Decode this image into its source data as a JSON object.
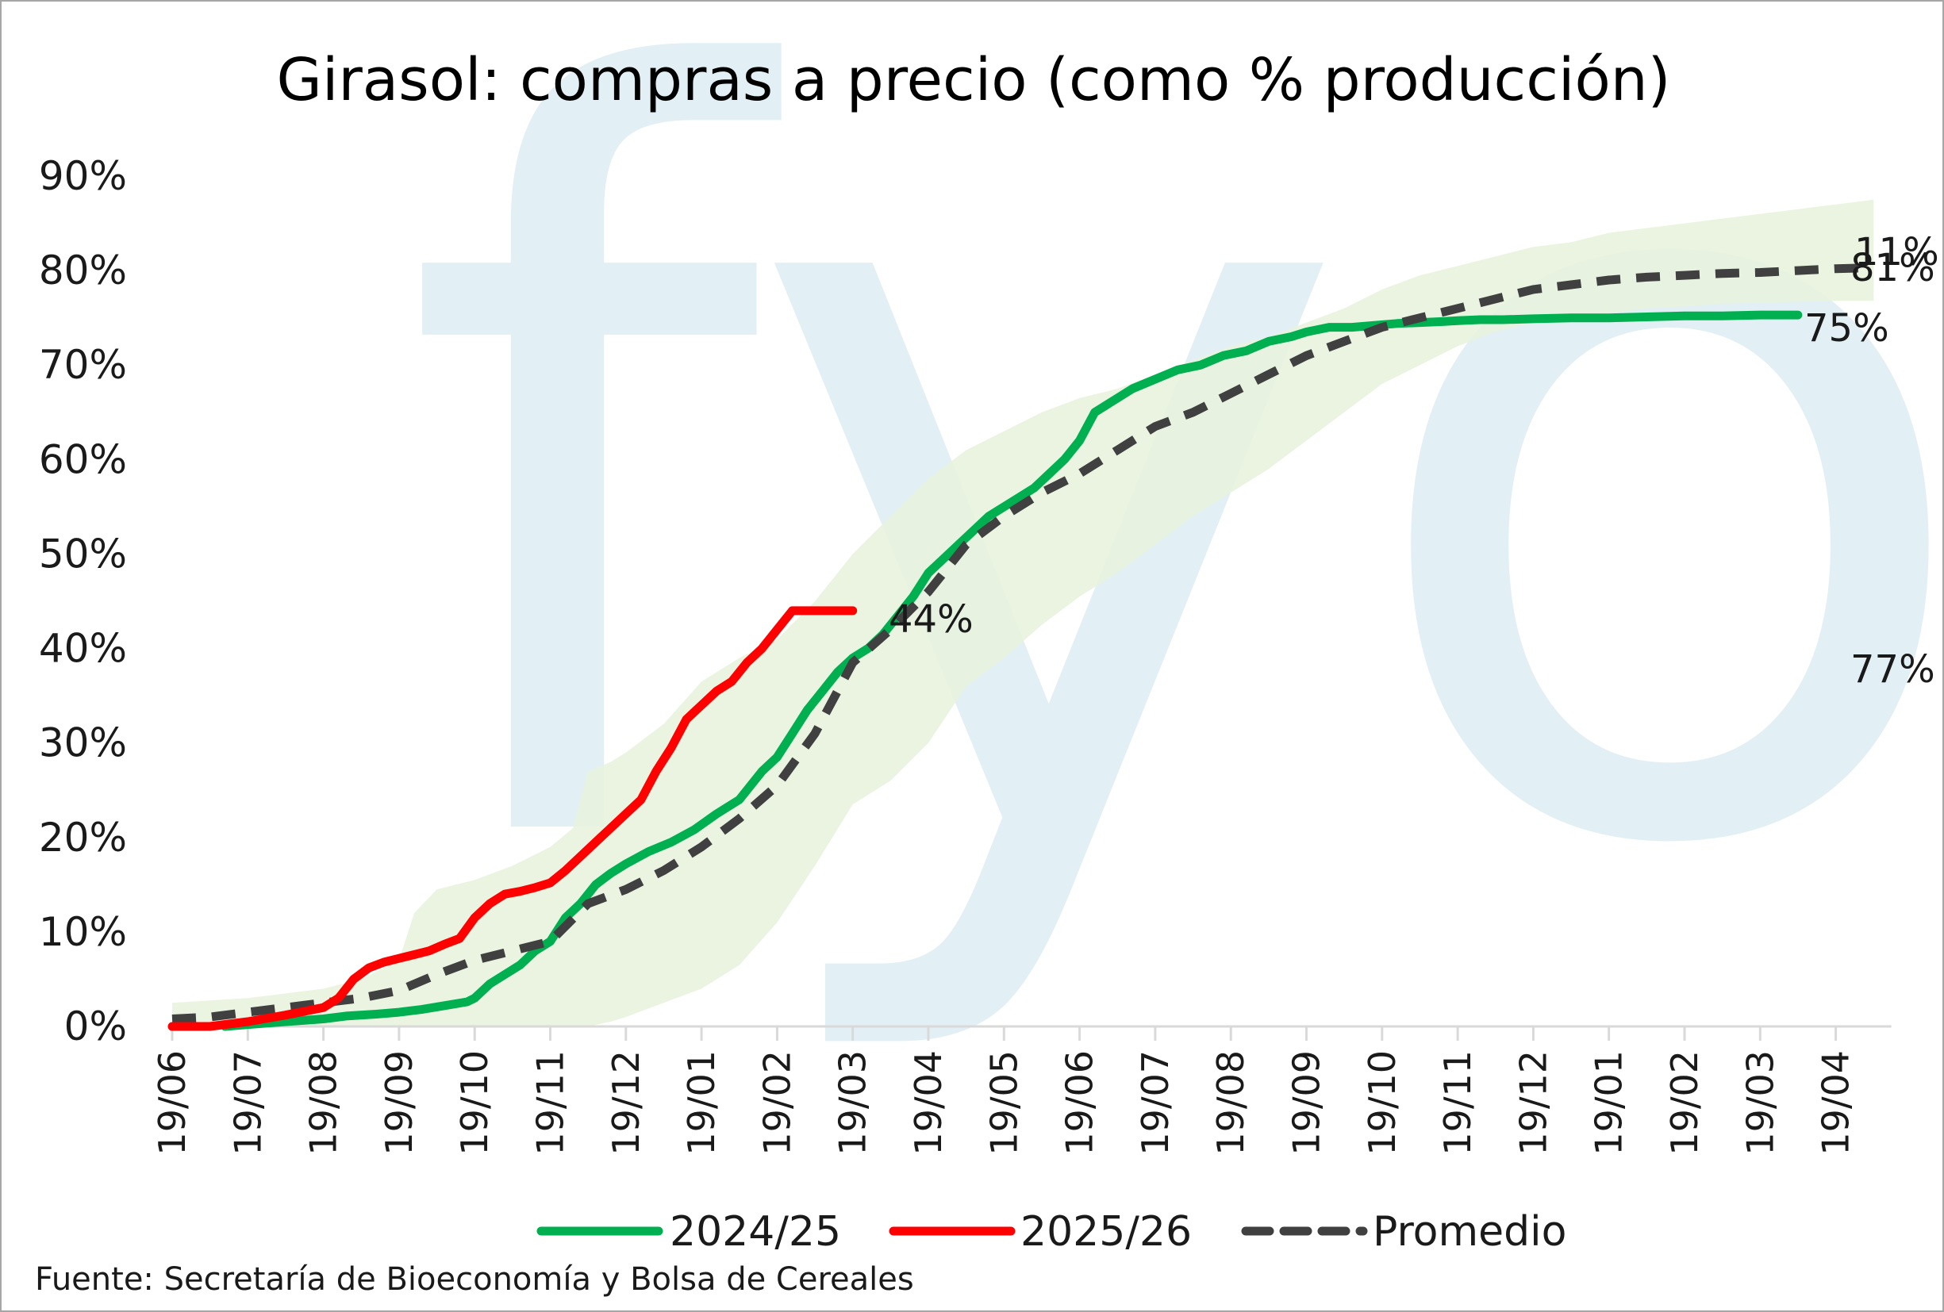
{
  "chart_data": {
    "type": "line",
    "title": "Girasol: compras a precio (como % producción)",
    "source": "Fuente: Secretaría de Bioeconomía y Bolsa de Cereales",
    "watermark": "fyo",
    "x_ticks": [
      "19/06",
      "19/07",
      "19/08",
      "19/09",
      "19/10",
      "19/11",
      "19/12",
      "19/01",
      "19/02",
      "19/03",
      "19/04",
      "19/05",
      "19/06",
      "19/07",
      "19/08",
      "19/09",
      "19/10",
      "19/11",
      "19/12",
      "19/01",
      "19/02",
      "19/03",
      "19/04"
    ],
    "y_ticks": [
      "0%",
      "10%",
      "20%",
      "30%",
      "40%",
      "50%",
      "60%",
      "70%",
      "80%",
      "90%"
    ],
    "ylim": [
      0,
      90
    ],
    "x_unit": "months since 19/06 tick",
    "series": [
      {
        "name": "2024/25",
        "color": "#00b050",
        "style": "solid",
        "x": [
          0.7,
          1.0,
          1.5,
          2.0,
          2.3,
          2.7,
          3.0,
          3.3,
          3.6,
          3.9,
          4.0,
          4.2,
          4.4,
          4.6,
          4.8,
          5.0,
          5.2,
          5.4,
          5.6,
          5.8,
          6.0,
          6.3,
          6.6,
          6.9,
          7.2,
          7.5,
          7.8,
          8.0,
          8.2,
          8.4,
          8.6,
          8.8,
          9.0,
          9.2,
          9.4,
          9.6,
          9.8,
          10.0,
          10.2,
          10.4,
          10.6,
          10.8,
          11.0,
          11.2,
          11.4,
          11.6,
          11.8,
          12.0,
          12.2,
          12.4,
          12.7,
          13.0,
          13.3,
          13.6,
          13.9,
          14.2,
          14.5,
          14.8,
          15.0,
          15.3,
          15.6,
          15.9,
          16.2,
          16.5,
          16.8,
          17.0,
          17.3,
          17.6,
          18.0,
          18.5,
          19.0,
          19.5,
          20.0,
          20.5,
          21.0,
          21.5
        ],
        "values": [
          0,
          0.2,
          0.5,
          0.8,
          1.1,
          1.3,
          1.5,
          1.8,
          2.2,
          2.6,
          3.0,
          4.5,
          5.5,
          6.5,
          8.0,
          9.0,
          11.5,
          13.0,
          15.0,
          16.2,
          17.2,
          18.5,
          19.5,
          20.8,
          22.5,
          24.0,
          27.0,
          28.5,
          31.0,
          33.5,
          35.5,
          37.5,
          39.0,
          40.0,
          41.5,
          43.5,
          45.5,
          48.0,
          49.5,
          51.0,
          52.5,
          54.0,
          55.0,
          56.0,
          57.0,
          58.5,
          60.0,
          62.0,
          65.0,
          66.0,
          67.5,
          68.5,
          69.5,
          70.0,
          71.0,
          71.5,
          72.5,
          73.0,
          73.5,
          74.0,
          74.0,
          74.2,
          74.4,
          74.5,
          74.6,
          74.7,
          74.8,
          74.8,
          74.9,
          75.0,
          75.0,
          75.1,
          75.2,
          75.2,
          75.3,
          75.3
        ],
        "end_label": "75%"
      },
      {
        "name": "2025/26",
        "color": "#ff0000",
        "style": "solid",
        "x": [
          0,
          0.5,
          1.0,
          1.5,
          2.0,
          2.2,
          2.4,
          2.6,
          2.8,
          3.0,
          3.2,
          3.4,
          3.6,
          3.8,
          4.0,
          4.2,
          4.4,
          4.6,
          4.8,
          5.0,
          5.2,
          5.4,
          5.6,
          5.8,
          6.0,
          6.2,
          6.4,
          6.6,
          6.8,
          7.0,
          7.2,
          7.4,
          7.6,
          7.8,
          8.0,
          8.2,
          8.4,
          8.6,
          8.8,
          9.0
        ],
        "values": [
          0,
          0,
          0.5,
          1.2,
          2.0,
          3.0,
          5.0,
          6.2,
          6.8,
          7.2,
          7.6,
          8.0,
          8.7,
          9.3,
          11.5,
          13.0,
          14.0,
          14.3,
          14.7,
          15.2,
          16.5,
          18.0,
          19.5,
          21.0,
          22.5,
          24.0,
          27.0,
          29.5,
          32.5,
          34.0,
          35.5,
          36.5,
          38.5,
          40.0,
          42.0,
          44.0,
          44.0,
          44.0,
          44.0,
          44.0
        ],
        "end_label": "44%"
      },
      {
        "name": "Promedio",
        "color": "#404040",
        "style": "dashed",
        "x": [
          0,
          0.5,
          1.0,
          1.5,
          2.0,
          2.5,
          3.0,
          3.5,
          4.0,
          4.5,
          5.0,
          5.5,
          6.0,
          6.5,
          7.0,
          7.5,
          8.0,
          8.5,
          9.0,
          9.5,
          10.0,
          10.5,
          11.0,
          11.5,
          12.0,
          12.5,
          13.0,
          13.5,
          14.0,
          14.5,
          15.0,
          15.5,
          16.0,
          16.5,
          17.0,
          17.5,
          18.0,
          18.5,
          19.0,
          19.5,
          20.0,
          20.5,
          21.0,
          21.5,
          22.0,
          22.5
        ],
        "values": [
          0.8,
          1.0,
          1.5,
          2.0,
          2.5,
          3.0,
          3.8,
          5.5,
          7.0,
          8.0,
          9.0,
          13.0,
          14.5,
          16.5,
          19.0,
          22.0,
          25.5,
          31.0,
          38.5,
          42.0,
          46.0,
          51.0,
          54.0,
          56.5,
          58.5,
          61.0,
          63.5,
          65.0,
          67.0,
          69.0,
          71.0,
          72.5,
          74.0,
          75.0,
          76.0,
          77.0,
          78.0,
          78.5,
          79.0,
          79.3,
          79.5,
          79.7,
          79.8,
          80.0,
          80.2,
          80.3
        ],
        "end_label": "81%"
      }
    ],
    "band": {
      "name": "",
      "color": "#e7f2dc",
      "x": [
        0,
        1.0,
        2.0,
        2.5,
        3.0,
        3.2,
        3.5,
        4.0,
        4.5,
        5.0,
        5.3,
        5.5,
        5.8,
        6.0,
        6.5,
        7.0,
        7.5,
        8.0,
        8.5,
        9.0,
        9.5,
        10.0,
        10.5,
        11.0,
        11.5,
        12.0,
        12.5,
        13.0,
        13.5,
        14.0,
        14.5,
        15.0,
        15.5,
        16.0,
        16.5,
        17.0,
        17.5,
        18.0,
        18.5,
        19.0,
        19.5,
        20.0,
        20.5,
        21.0,
        21.5,
        22.0,
        22.5
      ],
      "upper": [
        2.5,
        3.0,
        4.0,
        5.0,
        7.0,
        12.0,
        14.5,
        15.5,
        17.0,
        19.0,
        21.0,
        27.0,
        28.0,
        29.0,
        32.0,
        36.5,
        39.0,
        41.0,
        45.0,
        50.0,
        54.0,
        58.0,
        61.0,
        63.0,
        65.0,
        66.5,
        67.5,
        69.0,
        70.5,
        72.0,
        73.0,
        74.5,
        76.0,
        78.0,
        79.5,
        80.5,
        81.5,
        82.5,
        83.0,
        84.0,
        84.5,
        85.0,
        85.5,
        86.0,
        86.5,
        87.0,
        87.5
      ],
      "lower": [
        0,
        0,
        0,
        0,
        0,
        0,
        0,
        0,
        0,
        0,
        0,
        0,
        0.5,
        1.0,
        2.5,
        4.0,
        6.5,
        11.0,
        17.0,
        23.5,
        26.0,
        30.0,
        36.0,
        39.0,
        42.5,
        45.5,
        48.0,
        51.0,
        54.0,
        56.5,
        59.0,
        62.0,
        65.0,
        68.0,
        70.0,
        72.0,
        73.5,
        74.5,
        75.0,
        75.5,
        76.0,
        76.2,
        76.5,
        76.6,
        76.7,
        76.8,
        76.8
      ]
    },
    "extra_labels": [
      "11%",
      "77%"
    ],
    "legend": {
      "placement": "bottom"
    }
  }
}
